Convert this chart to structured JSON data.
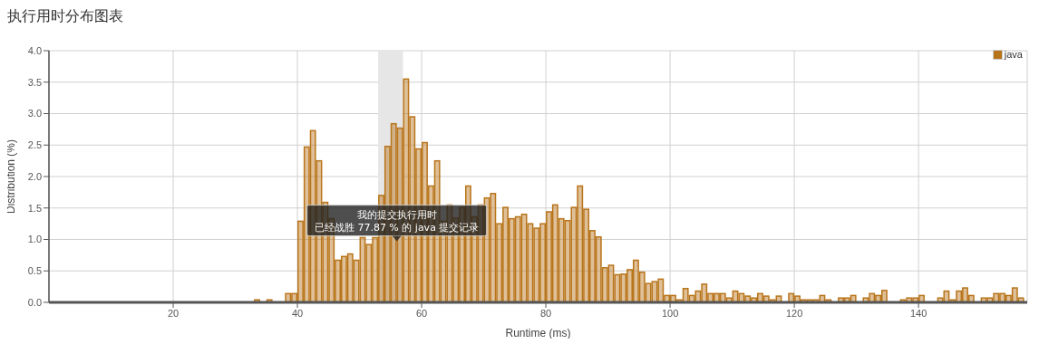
{
  "chart_data": {
    "type": "histogram",
    "title": "执行用时分布图表",
    "xlabel": "Runtime (ms)",
    "ylabel": "Distribution (%)",
    "bins": [
      33,
      34,
      35,
      36,
      37,
      38,
      39,
      40,
      41,
      42,
      43,
      44,
      45,
      46,
      47,
      48,
      49,
      50,
      51,
      52,
      53,
      54,
      55,
      56,
      57,
      58,
      59,
      60,
      61,
      62,
      63,
      64,
      65,
      66,
      67,
      68,
      69,
      70,
      71,
      72,
      73,
      74,
      75,
      76,
      77,
      78,
      79,
      80,
      81,
      82,
      83,
      84,
      85,
      86,
      87,
      88,
      89,
      90,
      91,
      92,
      93,
      94,
      95,
      96,
      97,
      98,
      99,
      100,
      101,
      102,
      103,
      104,
      105,
      106,
      107,
      108,
      109,
      110,
      111,
      112,
      113,
      114,
      115,
      116,
      117,
      118,
      119,
      120,
      121,
      122,
      123,
      124,
      125,
      126,
      127,
      128,
      129,
      130,
      131,
      132,
      133,
      134,
      135,
      136,
      137,
      138,
      139,
      140,
      141,
      142,
      143,
      144,
      145,
      146,
      147,
      148,
      149,
      150,
      151,
      152,
      153,
      154,
      155,
      156,
      157
    ],
    "series": [
      {
        "name": "java",
        "color": "#b8741a",
        "values": [
          0.05,
          0,
          0.05,
          0,
          0,
          0.15,
          0.15,
          1.3,
          2.48,
          2.74,
          2.26,
          1.6,
          1.34,
          0.68,
          0.74,
          0.78,
          0.68,
          1.04,
          0.93,
          1.04,
          1.71,
          2.49,
          2.85,
          2.78,
          3.56,
          2.96,
          2.45,
          2.55,
          1.86,
          2.26,
          1.3,
          1.56,
          1.35,
          1.52,
          1.86,
          1.37,
          1.56,
          1.67,
          1.74,
          1.26,
          1.52,
          1.34,
          1.37,
          1.41,
          1.26,
          1.19,
          1.26,
          1.45,
          1.56,
          1.34,
          1.31,
          1.52,
          1.86,
          1.49,
          1.15,
          1.05,
          0.56,
          0.6,
          0.45,
          0.46,
          0.53,
          0.68,
          0.49,
          0.31,
          0.34,
          0.38,
          0.12,
          0.12,
          0.05,
          0.23,
          0.12,
          0.19,
          0.3,
          0.15,
          0.15,
          0.15,
          0.08,
          0.19,
          0.15,
          0.11,
          0.08,
          0.15,
          0.11,
          0.05,
          0.11,
          0,
          0.15,
          0.11,
          0.05,
          0.05,
          0.05,
          0.12,
          0.05,
          0,
          0.08,
          0.08,
          0.12,
          0,
          0.08,
          0.15,
          0.12,
          0.2,
          0,
          0,
          0.05,
          0.08,
          0.08,
          0.12,
          0,
          0,
          0.08,
          0.19,
          0.05,
          0.19,
          0.24,
          0.12,
          0,
          0.08,
          0.08,
          0.15,
          0.15,
          0.12,
          0.24,
          0.08
        ]
      }
    ],
    "xlim": [
      0,
      157.5
    ],
    "xticks": [
      20,
      40,
      60,
      80,
      100,
      120,
      140
    ],
    "ylim": [
      0,
      4
    ],
    "yticks": [
      {
        "value": 0,
        "label": "0.0"
      },
      {
        "value": 0.5,
        "label": "0.5"
      },
      {
        "value": 1,
        "label": "1.0"
      },
      {
        "value": 1.5,
        "label": "1.5"
      },
      {
        "value": 2,
        "label": "2.0"
      },
      {
        "value": 2.5,
        "label": "2.5"
      },
      {
        "value": 3,
        "label": "3.0"
      },
      {
        "value": 3.5,
        "label": "3.5"
      },
      {
        "value": 4,
        "label": "4.0"
      }
    ],
    "bands": [
      {
        "axis": "x",
        "from": 53,
        "to": 57,
        "color": "#e6e6e6"
      }
    ],
    "annotations": [
      {
        "text": "我的提交执行用时",
        "x": 56,
        "y": 0.97
      },
      {
        "text": "已经战胜 77.87 % 的 java 提交记录",
        "x": 56,
        "y": 0.97
      }
    ],
    "grid": true,
    "legend": "top right"
  }
}
